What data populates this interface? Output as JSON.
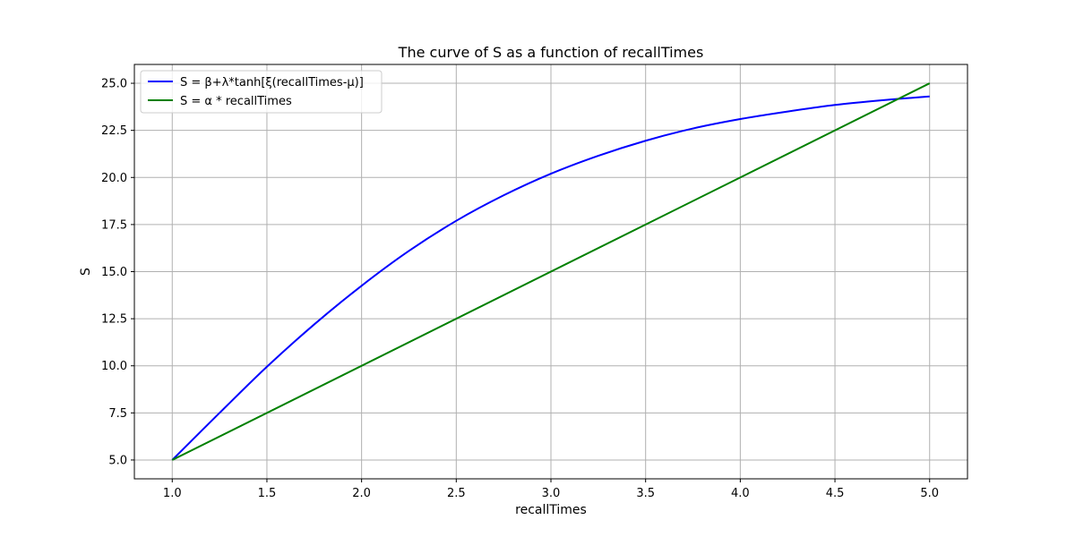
{
  "chart_data": {
    "type": "line",
    "title": "The curve of S as a function of recallTimes",
    "xlabel": "recallTimes",
    "ylabel": "S",
    "xlim": [
      0.8,
      5.2
    ],
    "ylim": [
      4.0,
      26.0
    ],
    "xticks": [
      1.0,
      1.5,
      2.0,
      2.5,
      3.0,
      3.5,
      4.0,
      4.5,
      5.0
    ],
    "xtick_labels": [
      "1.0",
      "1.5",
      "2.0",
      "2.5",
      "3.0",
      "3.5",
      "4.0",
      "4.5",
      "5.0"
    ],
    "yticks": [
      5.0,
      7.5,
      10.0,
      12.5,
      15.0,
      17.5,
      20.0,
      22.5,
      25.0
    ],
    "ytick_labels": [
      "5.0",
      "7.5",
      "10.0",
      "12.5",
      "15.0",
      "17.5",
      "20.0",
      "22.5",
      "25.0"
    ],
    "grid": true,
    "legend_position": "top-left",
    "series": [
      {
        "name": "S = β+λ*tanh[ξ(recallTimes-μ)]",
        "color": "#0000ff",
        "x": [
          1.0,
          1.25,
          1.5,
          1.75,
          2.0,
          2.25,
          2.5,
          2.75,
          3.0,
          3.25,
          3.5,
          3.75,
          4.0,
          4.25,
          4.5,
          4.75,
          5.0
        ],
        "y": [
          5.0,
          7.5,
          9.95,
          12.2,
          14.25,
          16.1,
          17.7,
          19.05,
          20.2,
          21.15,
          21.95,
          22.6,
          23.1,
          23.5,
          23.85,
          24.1,
          24.3
        ]
      },
      {
        "name": "S = α * recallTimes",
        "color": "#008000",
        "x": [
          1.0,
          5.0
        ],
        "y": [
          5.0,
          25.0
        ]
      }
    ]
  }
}
